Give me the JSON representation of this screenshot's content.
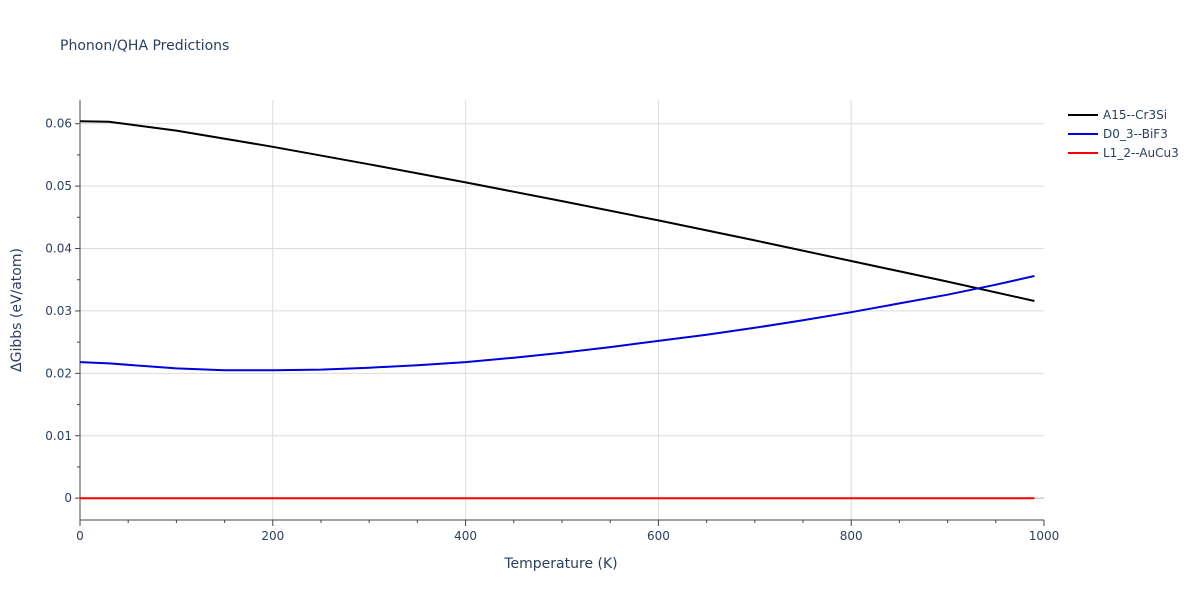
{
  "chart_data": {
    "type": "line",
    "title": "Phonon/QHA Predictions",
    "xlabel": "Temperature (K)",
    "ylabel": "ΔGibbs (eV/atom)",
    "xlim": [
      0,
      1000
    ],
    "ylim": [
      -0.0035,
      0.0638
    ],
    "xticks": [
      0,
      200,
      400,
      600,
      800,
      1000
    ],
    "xtick_labels": [
      "0",
      "200",
      "400",
      "600",
      "800",
      "1000"
    ],
    "yticks": [
      0,
      0.01,
      0.02,
      0.03,
      0.04,
      0.05,
      0.06
    ],
    "ytick_labels": [
      "0",
      "0.01",
      "0.02",
      "0.03",
      "0.04",
      "0.05",
      "0.06"
    ],
    "grid": true,
    "legend_position": "top-right",
    "series": [
      {
        "name": "A15--Cr3Si",
        "color": "#000000",
        "x": [
          0,
          30,
          100,
          200,
          300,
          400,
          500,
          600,
          700,
          800,
          900,
          990
        ],
        "y": [
          0.0604,
          0.0603,
          0.0589,
          0.0563,
          0.0535,
          0.0506,
          0.0476,
          0.0445,
          0.0413,
          0.038,
          0.0347,
          0.0316
        ]
      },
      {
        "name": "D0_3--BiF3",
        "color": "#0000dd",
        "x": [
          0,
          30,
          100,
          150,
          200,
          250,
          300,
          350,
          400,
          450,
          500,
          550,
          600,
          650,
          700,
          750,
          800,
          850,
          900,
          950,
          990
        ],
        "y": [
          0.0218,
          0.0216,
          0.0208,
          0.0205,
          0.0205,
          0.0206,
          0.0209,
          0.0213,
          0.0218,
          0.0225,
          0.0233,
          0.0242,
          0.0252,
          0.0262,
          0.0273,
          0.0285,
          0.0298,
          0.0312,
          0.0326,
          0.0342,
          0.0356
        ]
      },
      {
        "name": "L1_2--AuCu3",
        "color": "#ff0000",
        "x": [
          0,
          990
        ],
        "y": [
          0,
          0
        ]
      }
    ]
  }
}
